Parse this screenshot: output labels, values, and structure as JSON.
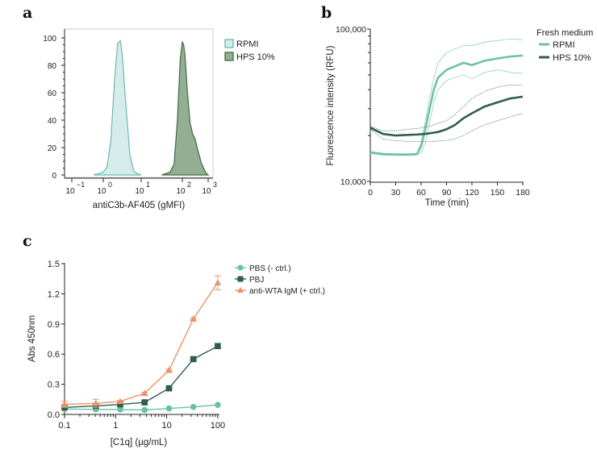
{
  "chart_data": [
    {
      "panel": "a",
      "type": "area",
      "xlabel": "antiC3b-AF405 (gMFI)",
      "ylabel": "",
      "ylim": [
        0,
        100
      ],
      "yticks": [
        "0",
        "20",
        "40",
        "60",
        "80",
        "100"
      ],
      "xscale": "log (biexponential)",
      "xticks": [
        {
          "base": "10",
          "exp": "−1"
        },
        {
          "base": "10",
          "exp": "0"
        },
        {
          "base": "10",
          "exp": "1"
        },
        {
          "base": "10",
          "exp": "2"
        },
        {
          "base": "10",
          "exp": "3"
        }
      ],
      "legend": "right",
      "series": [
        {
          "name": "RPMI",
          "color": "#6bb8b4",
          "fill": "#d6ecea",
          "log10x": [
            -0.3,
            0,
            0.1,
            0.2,
            0.3,
            0.38,
            0.45,
            0.5,
            0.6,
            0.7,
            0.8,
            0.9,
            1.0
          ],
          "values": [
            0,
            2,
            6,
            25,
            70,
            96,
            98,
            88,
            50,
            15,
            3,
            1,
            0
          ]
        },
        {
          "name": "HPS 10%",
          "color": "#3f6b45",
          "fill": "#93ae91",
          "log10x": [
            1.5,
            1.7,
            1.8,
            1.88,
            1.95,
            2.0,
            2.05,
            2.1,
            2.2,
            2.3,
            2.4,
            2.5,
            2.6,
            2.75,
            2.9,
            3.0
          ],
          "values": [
            0,
            2,
            8,
            40,
            85,
            97,
            95,
            88,
            60,
            38,
            30,
            26,
            18,
            8,
            2,
            0
          ]
        }
      ]
    },
    {
      "panel": "b",
      "type": "line",
      "xlabel": "Time (min)",
      "ylabel": "Fluorescence intensity (RFU)",
      "xlim": [
        0,
        180
      ],
      "ylim": [
        10000,
        100000
      ],
      "yscale": "log",
      "xticks": [
        "0",
        "30",
        "60",
        "90",
        "120",
        "150",
        "180"
      ],
      "yticks": [
        "10,000",
        "100,000"
      ],
      "legend_title": "Fresh medium",
      "legend": "top-right",
      "x": [
        0,
        15,
        30,
        45,
        55,
        60,
        65,
        70,
        75,
        80,
        90,
        100,
        110,
        120,
        135,
        150,
        165,
        180
      ],
      "series": [
        {
          "name": "RPMI",
          "color": "#6bc3a9",
          "mean": [
            15500,
            15100,
            15000,
            15000,
            15100,
            17000,
            22000,
            30000,
            40000,
            48000,
            54000,
            57000,
            60000,
            58000,
            62000,
            64000,
            66000,
            67000
          ],
          "upper": [
            15700,
            15300,
            15200,
            15200,
            15300,
            18000,
            25000,
            35000,
            48000,
            60000,
            70000,
            74000,
            78000,
            78000,
            82000,
            84000,
            86000,
            85000
          ],
          "lower": [
            15300,
            14900,
            14800,
            14800,
            14900,
            15500,
            18000,
            24000,
            33000,
            40000,
            46000,
            48000,
            50000,
            47000,
            52000,
            54000,
            52000,
            51000
          ]
        },
        {
          "name": "HPS 10%",
          "color": "#2f5e4c",
          "mean": [
            22500,
            20500,
            20000,
            20200,
            20300,
            20400,
            20500,
            20700,
            20900,
            21100,
            22000,
            23500,
            26000,
            28000,
            31000,
            33000,
            35000,
            36000
          ],
          "upper": [
            23000,
            21500,
            21500,
            22000,
            22200,
            22500,
            22800,
            23000,
            23500,
            24000,
            25000,
            27500,
            31000,
            35000,
            39000,
            41500,
            43000,
            43000
          ],
          "lower": [
            22000,
            19000,
            18500,
            18300,
            18200,
            18200,
            18200,
            18300,
            18300,
            18400,
            18600,
            19000,
            20000,
            21500,
            23500,
            25000,
            26500,
            28000
          ]
        }
      ]
    },
    {
      "panel": "c",
      "type": "line",
      "xlabel": "[C1q] (µg/mL)",
      "ylabel": "Abs 450nm",
      "xscale": "log",
      "xlim": [
        0.1,
        100
      ],
      "ylim": [
        0,
        1.5
      ],
      "xticks": [
        "0.1",
        "1",
        "10",
        "100"
      ],
      "yticks": [
        "0.0",
        "0.3",
        "0.6",
        "0.9",
        "1.2",
        "1.5"
      ],
      "legend": "top-right",
      "x": [
        0.1,
        0.41,
        1.23,
        3.7,
        11.1,
        33.3,
        100
      ],
      "series": [
        {
          "name": "PBS (- ctrl.)",
          "marker": "circle",
          "color": "#66c2a5",
          "values": [
            0.055,
            0.05,
            0.05,
            0.045,
            0.06,
            0.075,
            0.095
          ]
        },
        {
          "name": "PBJ",
          "marker": "square",
          "color": "#2f5e4c",
          "values": [
            0.07,
            0.085,
            0.1,
            0.12,
            0.26,
            0.55,
            0.68
          ],
          "error": [
            0.01,
            0.01,
            0.01,
            0.01,
            0.01,
            0.01,
            0.025
          ]
        },
        {
          "name": "anti-WTA IgM (+ ctrl.)",
          "marker": "triangle",
          "color": "#e8956a",
          "values": [
            0.1,
            0.11,
            0.13,
            0.21,
            0.44,
            0.95,
            1.31
          ],
          "error": [
            0.03,
            0.04,
            0.01,
            0.01,
            0.01,
            0.01,
            0.07
          ]
        }
      ]
    }
  ],
  "panel_labels": [
    "a",
    "b",
    "c"
  ]
}
